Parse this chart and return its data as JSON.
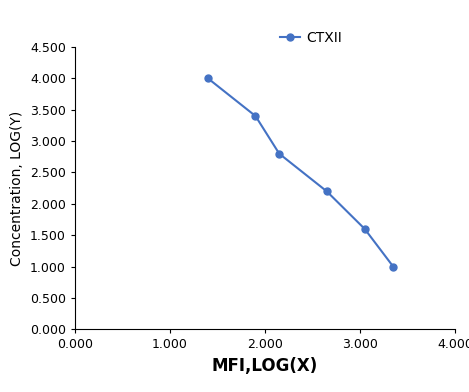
{
  "x": [
    1.4,
    1.9,
    2.15,
    2.65,
    3.05,
    3.35
  ],
  "y": [
    4.0,
    3.4,
    2.8,
    2.2,
    1.6,
    1.0
  ],
  "line_color": "#4472C4",
  "marker": "o",
  "marker_size": 5,
  "line_width": 1.5,
  "legend_label": "CTXII",
  "xlabel": "MFI,LOG(X)",
  "ylabel": "Concentration, LOG(Y)",
  "xlim": [
    0.0,
    4.0
  ],
  "ylim": [
    0.0,
    4.5
  ],
  "xticks": [
    0.0,
    1.0,
    2.0,
    3.0,
    4.0
  ],
  "yticks": [
    0.0,
    0.5,
    1.0,
    1.5,
    2.0,
    2.5,
    3.0,
    3.5,
    4.0,
    4.5
  ],
  "background_color": "#ffffff",
  "xlabel_fontsize": 12,
  "ylabel_fontsize": 10,
  "legend_fontsize": 10,
  "tick_fontsize": 9
}
